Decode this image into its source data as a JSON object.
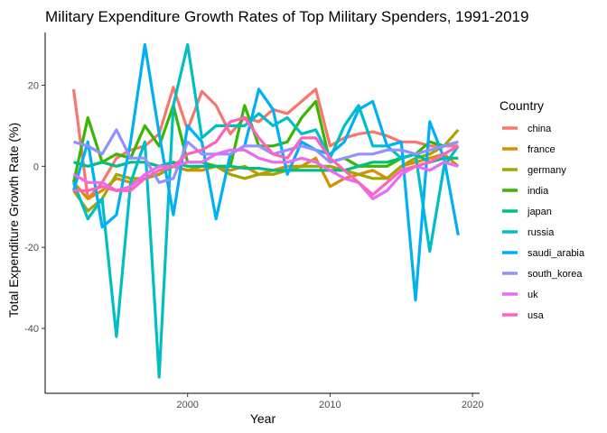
{
  "chart_data": {
    "type": "line",
    "title": "Military Expenditure Growth Rates of Top Military Spenders, 1991-2019",
    "xlabel": "Year",
    "ylabel": "Total Expenditure Growth Rate (%)",
    "xlim": [
      1990,
      2020.5
    ],
    "ylim": [
      -56,
      33
    ],
    "xticks": [
      2000,
      2010,
      2020
    ],
    "yticks": [
      -40,
      -20,
      0,
      20
    ],
    "grid": false,
    "legend_title": "Country",
    "legend_position": "right",
    "x": [
      1992,
      1993,
      1994,
      1995,
      1996,
      1997,
      1998,
      1999,
      2000,
      2001,
      2002,
      2003,
      2004,
      2005,
      2006,
      2007,
      2008,
      2009,
      2010,
      2011,
      2012,
      2013,
      2014,
      2015,
      2016,
      2017,
      2018,
      2019
    ],
    "series": [
      {
        "name": "china",
        "color": "#F8766D",
        "values": [
          19,
          -8,
          -4,
          2,
          4,
          5,
          8,
          19.5,
          9,
          18.5,
          15,
          8,
          12,
          11,
          14,
          13,
          16,
          19,
          5,
          7,
          8,
          8.5,
          7.5,
          6,
          6,
          5,
          5,
          5
        ]
      },
      {
        "name": "france",
        "color": "#D89000",
        "values": [
          -4,
          -8,
          -6,
          -3,
          -4,
          -3,
          -2,
          0,
          -1,
          -1,
          0,
          -1,
          0,
          -2,
          -1,
          0,
          0,
          2,
          -5,
          -3,
          -2,
          -1,
          -3,
          0,
          1,
          2,
          3,
          0
        ]
      },
      {
        "name": "germany",
        "color": "#A3A500",
        "values": [
          -6,
          -11,
          -8,
          -2,
          -3,
          -3,
          -2,
          0,
          -1,
          0,
          0,
          -2,
          -3,
          -2,
          -2,
          -1,
          0,
          0,
          0,
          -1,
          -2,
          -3,
          -3,
          0,
          2,
          3,
          5,
          9
        ]
      },
      {
        "name": "india",
        "color": "#39B600",
        "values": [
          -4,
          12,
          1,
          3,
          2,
          10,
          5,
          15,
          1,
          1,
          0,
          0,
          15,
          5,
          5,
          6,
          12,
          16,
          1,
          2,
          0,
          0,
          0,
          2,
          3,
          6,
          5,
          6
        ]
      },
      {
        "name": "japan",
        "color": "#00BF7D",
        "values": [
          1,
          0,
          1,
          0,
          1,
          1,
          0,
          1,
          0,
          0,
          0,
          0,
          -0.5,
          -0.5,
          -1,
          -1,
          -1,
          -1,
          -1,
          -1,
          0,
          1,
          1,
          2,
          3,
          1,
          2,
          2
        ]
      },
      {
        "name": "russia",
        "color": "#00BFC4",
        "values": [
          -4,
          -13,
          -8,
          -42,
          -4,
          6,
          -52,
          15,
          30,
          7,
          10,
          10,
          10,
          13,
          10,
          12,
          8,
          9,
          2,
          10,
          15,
          5,
          5,
          2,
          3,
          -21,
          0,
          5
        ]
      },
      {
        "name": "saudi_arabia",
        "color": "#00B0F6",
        "values": [
          -6,
          6,
          -15,
          -12,
          6,
          30,
          8,
          -12,
          10,
          6,
          -13,
          3,
          5,
          19,
          14,
          -2,
          6,
          4,
          3,
          6,
          14,
          16,
          5,
          6,
          -33,
          11,
          2,
          -17
        ]
      },
      {
        "name": "south_korea",
        "color": "#9590FF",
        "values": [
          6,
          5,
          3,
          9,
          2,
          2,
          -4,
          -3,
          6,
          3,
          3,
          3,
          5,
          5,
          3,
          4,
          5,
          4,
          1,
          2,
          3,
          3,
          4,
          4,
          3,
          4,
          5,
          6
        ]
      },
      {
        "name": "uk",
        "color": "#E76BF3",
        "values": [
          -2,
          -4,
          -4,
          -6,
          -5,
          -2,
          0,
          0,
          1,
          1,
          3,
          4,
          4,
          2,
          1,
          1,
          2,
          1,
          -1,
          -3,
          -4,
          -8,
          -6,
          -2,
          0,
          -1,
          1,
          0
        ]
      },
      {
        "name": "usa",
        "color": "#FF62BC",
        "values": [
          -6,
          -6,
          -5,
          -6,
          -6,
          -3,
          -1,
          0,
          3,
          4,
          6,
          11,
          12,
          7,
          3,
          2,
          7,
          7,
          2,
          -1,
          -4,
          -7,
          -4,
          -1,
          0,
          1,
          3,
          5
        ]
      }
    ]
  }
}
